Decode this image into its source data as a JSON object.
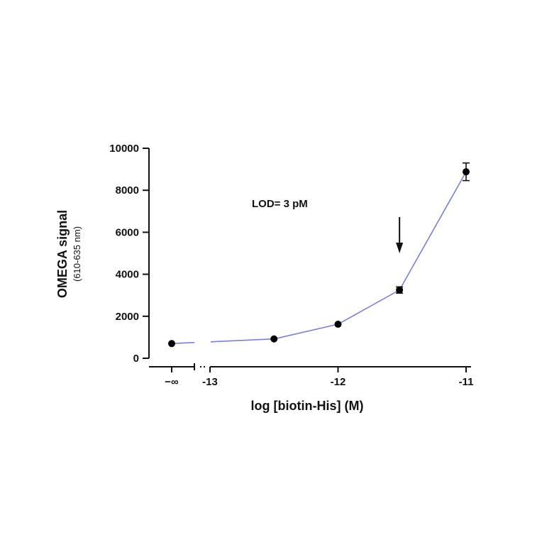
{
  "chart_data": {
    "type": "line",
    "xlabel": "log [biotin-His] (M)",
    "ylabel": "OMEGA signal",
    "ylabel_sub": "(610-635 nm)",
    "annotation": "LOD= 3 pM",
    "annotation_arrow_x": -11.52,
    "ylim": [
      0,
      10000
    ],
    "yticks": [
      0,
      2000,
      4000,
      6000,
      8000,
      10000
    ],
    "ytick_labels": [
      "0",
      "2000",
      "4000",
      "6000",
      "8000",
      "10000"
    ],
    "x_segment_neg_inf_label": "−∞",
    "xticks": [
      -13,
      -12,
      -11
    ],
    "xtick_labels": [
      "-13",
      "-12",
      "-11"
    ],
    "xlim": [
      -13.2,
      -10.95
    ],
    "axis_break": true,
    "line_color": "#7b7fd6",
    "marker_color": "#000000",
    "points": [
      {
        "x": "-inf",
        "y": 700,
        "err": 0
      },
      {
        "x": -12.5,
        "y": 920,
        "err": 0
      },
      {
        "x": -12.0,
        "y": 1620,
        "err": 0
      },
      {
        "x": -11.52,
        "y": 3250,
        "err": 150
      },
      {
        "x": -11.0,
        "y": 8880,
        "err": 420
      }
    ]
  }
}
